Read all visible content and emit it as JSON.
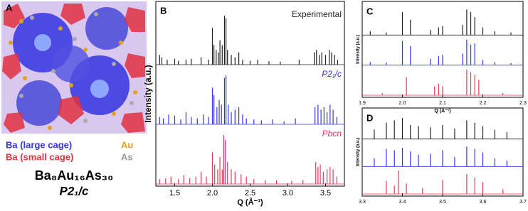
{
  "structure_panel": {
    "panel_label": "A",
    "legend": {
      "large_cage": "Ba (large cage)",
      "au": "Au",
      "small_cage": "Ba (small cage)",
      "as": "As"
    },
    "formula": "Ba₈Au₁₆As₃₀",
    "space_group": "P2₁/c"
  },
  "chart_data": [
    {
      "type": "stem",
      "panel_label": "B",
      "x_label": "Q (Å⁻¹)",
      "y_label": "Intensity (a.u.)",
      "xlim": [
        1.25,
        3.75
      ],
      "ylim": [
        0,
        100
      ],
      "xticks": [
        1.5,
        {
          "value": 2,
          "label": "2.0"
        },
        2.5,
        {
          "value": 3,
          "label": "3.0"
        },
        3.5
      ],
      "series": [
        {
          "name": "Experimental",
          "color": "#222222",
          "x": [
            1.3,
            1.33,
            1.4,
            1.5,
            1.55,
            1.65,
            1.72,
            1.85,
            1.95,
            2.0,
            2.02,
            2.05,
            2.08,
            2.1,
            2.13,
            2.16,
            2.18,
            2.2,
            2.25,
            2.3,
            2.35,
            2.4,
            2.5,
            2.6,
            2.75,
            2.9,
            3.15,
            3.35,
            3.38,
            3.42,
            3.45,
            3.5,
            3.55,
            3.58,
            3.62,
            3.66
          ],
          "values": [
            20,
            15,
            10,
            12,
            8,
            10,
            12,
            15,
            10,
            75,
            40,
            30,
            25,
            50,
            40,
            100,
            95,
            30,
            20,
            15,
            25,
            10,
            8,
            10,
            7,
            6,
            10,
            25,
            30,
            20,
            25,
            20,
            30,
            25,
            20,
            10
          ]
        },
        {
          "name": "P2₁/c",
          "color": "#3333ee",
          "x": [
            1.3,
            1.35,
            1.42,
            1.5,
            1.58,
            1.65,
            1.72,
            1.8,
            1.88,
            1.95,
            2.0,
            2.02,
            2.06,
            2.09,
            2.12,
            2.16,
            2.18,
            2.21,
            2.25,
            2.3,
            2.35,
            2.4,
            2.45,
            2.55,
            2.65,
            2.8,
            2.95,
            3.1,
            3.36,
            3.4,
            3.44,
            3.48,
            3.52,
            3.56,
            3.6,
            3.65
          ],
          "values": [
            15,
            12,
            20,
            18,
            10,
            25,
            15,
            12,
            20,
            15,
            75,
            60,
            35,
            50,
            40,
            95,
            100,
            40,
            25,
            30,
            35,
            20,
            12,
            10,
            8,
            10,
            6,
            12,
            35,
            40,
            30,
            35,
            25,
            40,
            30,
            15
          ]
        },
        {
          "name": "Pbcn",
          "color": "#e8395a",
          "x": [
            1.3,
            1.38,
            1.45,
            1.55,
            1.62,
            1.7,
            1.78,
            1.85,
            1.92,
            2.0,
            2.03,
            2.07,
            2.1,
            2.13,
            2.15,
            2.17,
            2.2,
            2.25,
            2.3,
            2.38,
            2.45,
            2.55,
            2.7,
            2.85,
            3.05,
            3.2,
            3.37,
            3.4,
            3.43,
            3.47,
            3.52,
            3.56,
            3.6,
            3.65
          ],
          "values": [
            10,
            12,
            15,
            10,
            18,
            12,
            15,
            25,
            15,
            65,
            40,
            30,
            55,
            30,
            100,
            90,
            45,
            30,
            25,
            20,
            15,
            10,
            8,
            8,
            6,
            8,
            45,
            35,
            40,
            25,
            30,
            35,
            30,
            15
          ]
        }
      ]
    },
    {
      "type": "stem",
      "panel_label": "C",
      "x_label": "Q (Å⁻¹)",
      "y_label": "Intensity (a.u.)",
      "xlim": [
        1.9,
        2.3
      ],
      "ylim": [
        0,
        100
      ],
      "xticks": [
        1.9,
        {
          "value": 2,
          "label": "2.0"
        },
        2.1,
        2.2,
        2.3
      ],
      "series": [
        {
          "color": "#222222",
          "x": [
            1.92,
            1.96,
            2.0,
            2.02,
            2.07,
            2.09,
            2.1,
            2.15,
            2.16,
            2.17,
            2.18,
            2.2,
            2.23,
            2.27
          ],
          "values": [
            15,
            10,
            90,
            60,
            20,
            30,
            35,
            40,
            100,
            90,
            70,
            30,
            15,
            10
          ]
        },
        {
          "color": "#3333ee",
          "x": [
            1.92,
            1.96,
            2.0,
            2.02,
            2.07,
            2.09,
            2.1,
            2.15,
            2.16,
            2.17,
            2.18,
            2.2,
            2.23,
            2.27
          ],
          "values": [
            12,
            10,
            95,
            75,
            25,
            35,
            40,
            45,
            100,
            80,
            85,
            20,
            12,
            8
          ]
        },
        {
          "color": "#e8395a",
          "x": [
            1.95,
            2.01,
            2.08,
            2.09,
            2.1,
            2.16,
            2.17,
            2.18,
            2.19,
            2.25
          ],
          "values": [
            8,
            70,
            35,
            45,
            35,
            100,
            90,
            80,
            60,
            8
          ]
        }
      ]
    },
    {
      "type": "stem",
      "panel_label": "D",
      "y_label": "Intensity (a.u.)",
      "xlim": [
        3.3,
        3.7
      ],
      "ylim": [
        0,
        100
      ],
      "xticks": [
        3.3,
        3.4,
        3.5,
        3.6,
        3.7
      ],
      "series": [
        {
          "color": "#222222",
          "x": [
            3.33,
            3.36,
            3.38,
            3.4,
            3.42,
            3.44,
            3.47,
            3.5,
            3.53,
            3.56,
            3.58,
            3.6,
            3.63,
            3.66
          ],
          "values": [
            40,
            70,
            80,
            90,
            60,
            55,
            50,
            60,
            45,
            80,
            70,
            55,
            40,
            30
          ]
        },
        {
          "color": "#3333ee",
          "x": [
            3.33,
            3.36,
            3.38,
            3.4,
            3.42,
            3.44,
            3.47,
            3.5,
            3.53,
            3.56,
            3.58,
            3.6,
            3.63,
            3.66
          ],
          "values": [
            35,
            75,
            70,
            80,
            65,
            50,
            55,
            70,
            40,
            85,
            75,
            60,
            35,
            25
          ]
        },
        {
          "color": "#e8395a",
          "x": [
            3.36,
            3.38,
            3.39,
            3.41,
            3.45,
            3.5,
            3.56,
            3.58,
            3.6,
            3.65
          ],
          "values": [
            55,
            35,
            100,
            45,
            25,
            60,
            85,
            70,
            50,
            20
          ]
        }
      ]
    }
  ]
}
